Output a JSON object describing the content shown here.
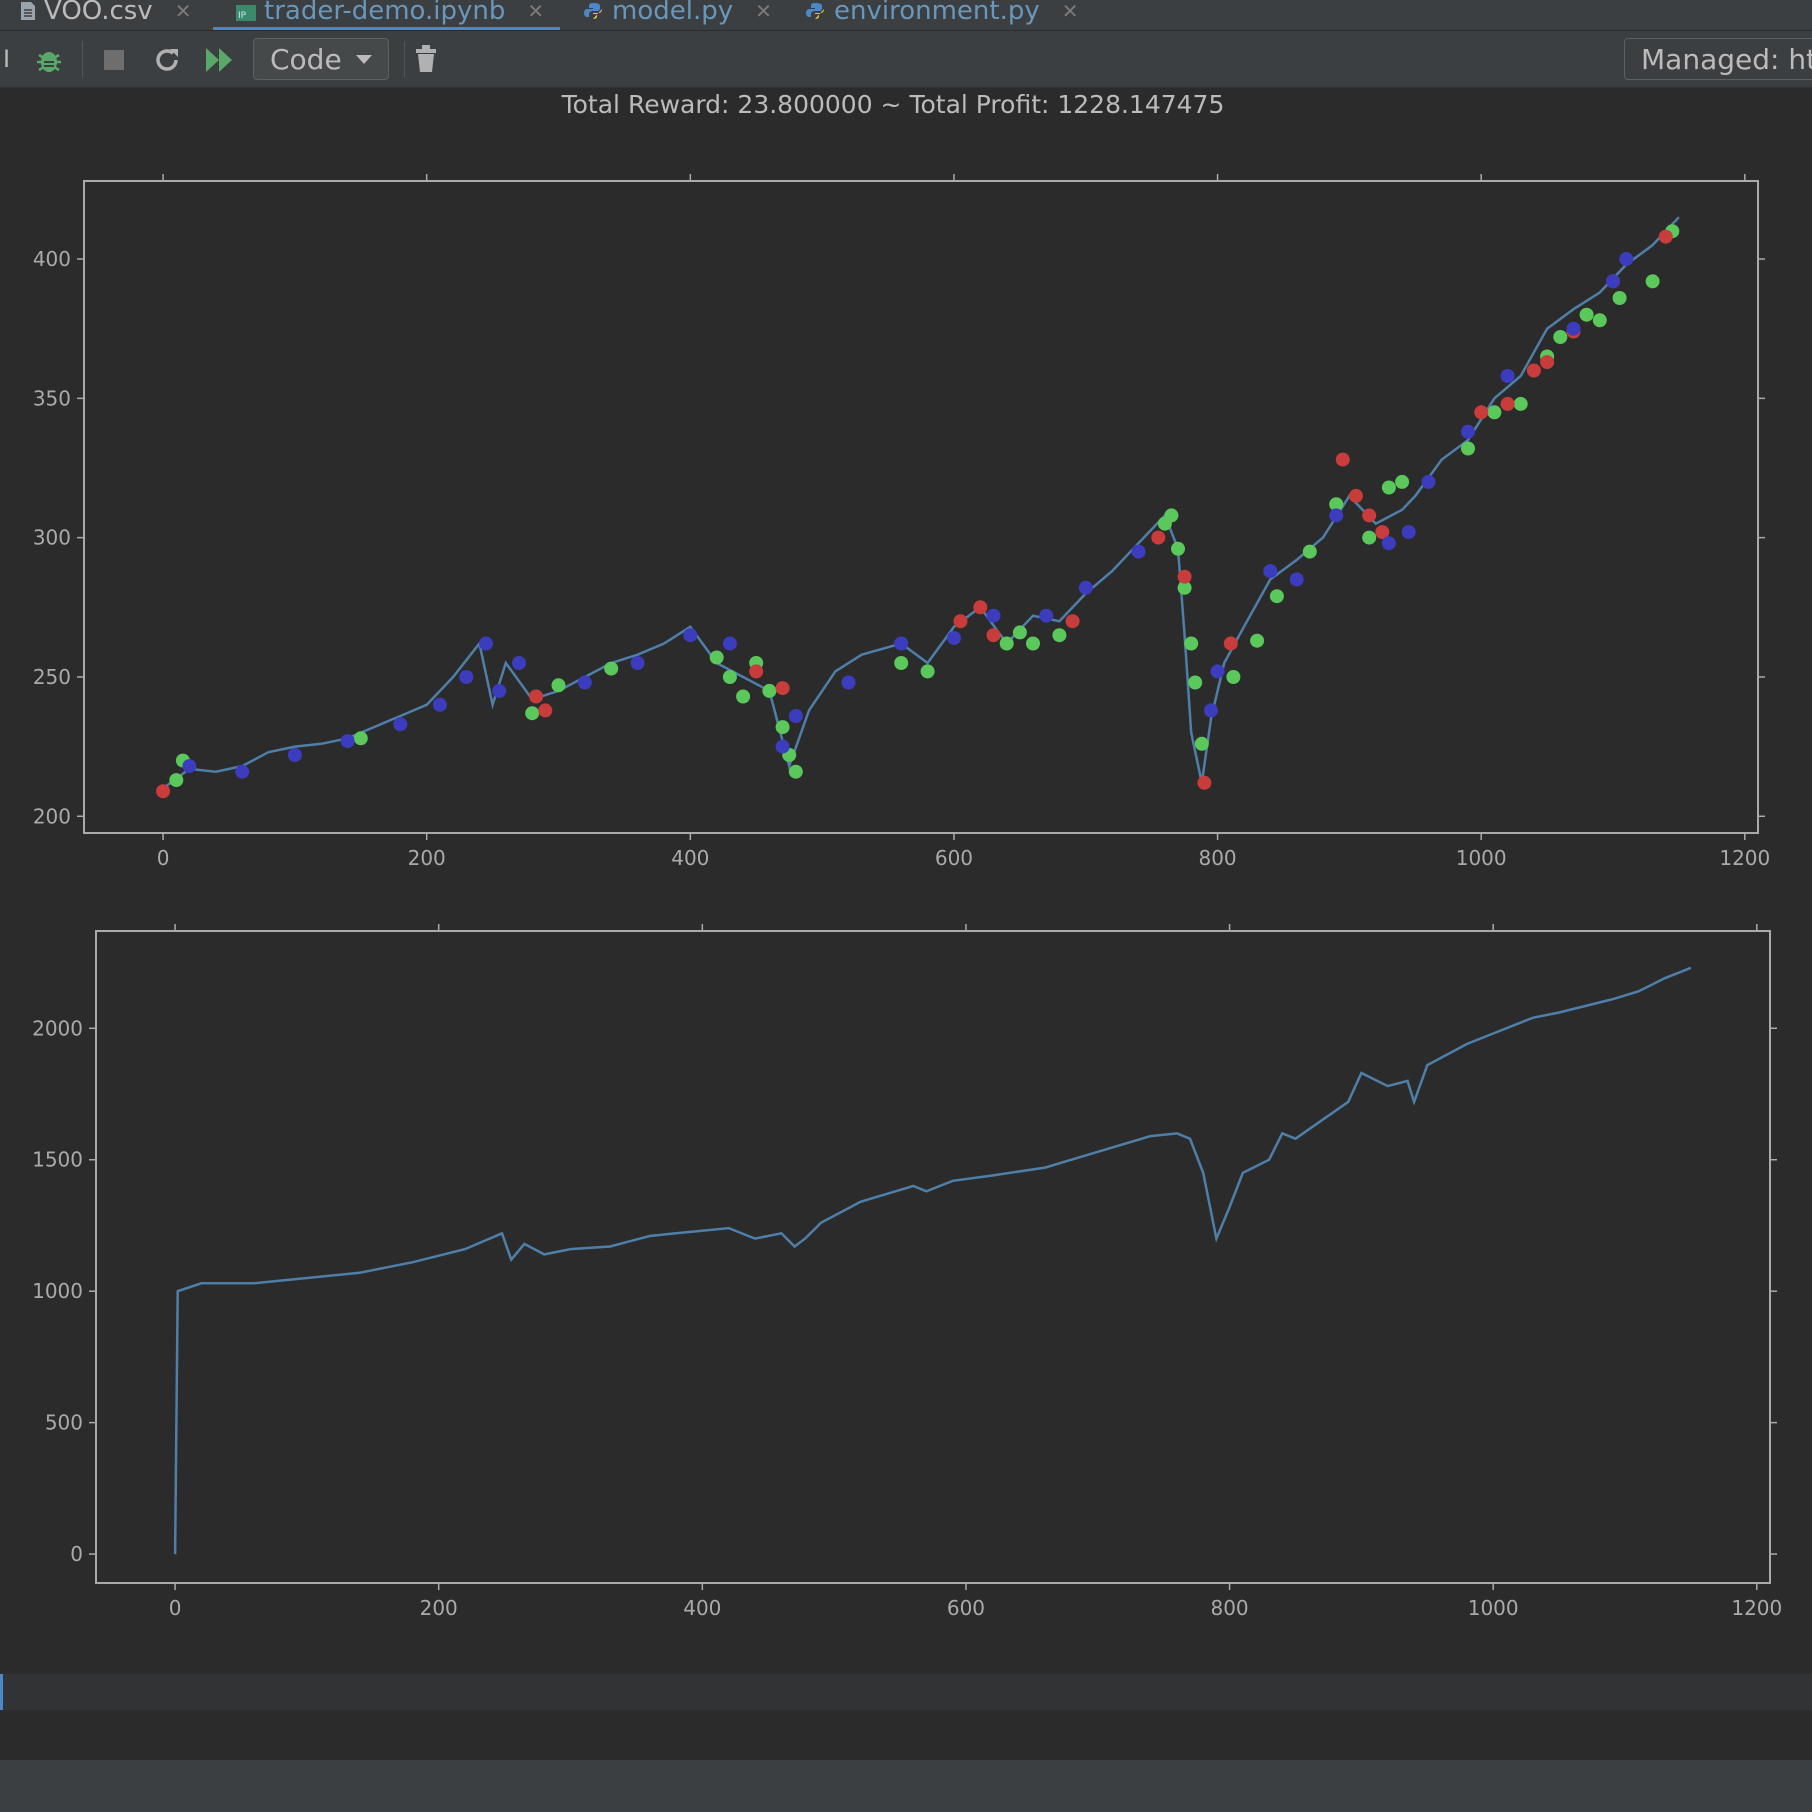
{
  "tabs": [
    {
      "label": "VOO.csv",
      "icon": "csv-file-icon"
    },
    {
      "label": "trader-demo.ipynb",
      "icon": "notebook-file-icon",
      "active": true
    },
    {
      "label": "model.py",
      "icon": "python-file-icon"
    },
    {
      "label": "environment.py",
      "icon": "python-file-icon"
    }
  ],
  "toolbar": {
    "cell_type": "Code",
    "kernel": "Managed: htt"
  },
  "output": {
    "title": "Total Reward: 23.800000 ~ Total Profit: 1228.147475"
  },
  "colors": {
    "line": "#4f7fa8",
    "buy": "#5ac85a",
    "sell": "#c83c3c",
    "hold": "#3c3cbe",
    "background": "#2b2b2b",
    "axis": "#aaaaaa"
  },
  "chart_data": [
    {
      "type": "scatter",
      "title": "",
      "xlabel": "",
      "ylabel": "",
      "xlim": [
        -60,
        1210
      ],
      "ylim": [
        194,
        428
      ],
      "xticks": [
        0,
        200,
        400,
        600,
        800,
        1000,
        1200
      ],
      "yticks": [
        200,
        250,
        300,
        350,
        400
      ],
      "grid": false,
      "series": [
        {
          "kind": "line",
          "x": [
            0,
            20,
            40,
            60,
            80,
            100,
            120,
            140,
            160,
            180,
            200,
            220,
            240,
            250,
            260,
            280,
            300,
            320,
            340,
            360,
            380,
            400,
            420,
            440,
            460,
            475,
            490,
            510,
            530,
            560,
            580,
            600,
            620,
            640,
            660,
            680,
            700,
            720,
            740,
            760,
            770,
            775,
            780,
            788,
            795,
            805,
            820,
            840,
            860,
            880,
            900,
            920,
            940,
            950,
            970,
            990,
            1010,
            1030,
            1050,
            1070,
            1090,
            1110,
            1130,
            1150
          ],
          "y": [
            210,
            217,
            216,
            218,
            223,
            225,
            226,
            228,
            232,
            236,
            240,
            250,
            262,
            240,
            255,
            242,
            245,
            250,
            255,
            258,
            262,
            268,
            255,
            250,
            245,
            218,
            238,
            252,
            258,
            262,
            255,
            268,
            275,
            262,
            272,
            270,
            280,
            288,
            298,
            308,
            296,
            265,
            230,
            212,
            235,
            255,
            268,
            285,
            292,
            300,
            315,
            305,
            310,
            315,
            328,
            335,
            350,
            358,
            375,
            382,
            388,
            398,
            405,
            415
          ]
        },
        {
          "kind": "points",
          "name": "buy",
          "x": [
            10,
            15,
            150,
            280,
            300,
            340,
            420,
            430,
            440,
            450,
            460,
            470,
            475,
            480,
            560,
            580,
            640,
            650,
            660,
            680,
            760,
            765,
            770,
            775,
            780,
            783,
            788,
            812,
            830,
            845,
            870,
            890,
            915,
            930,
            940,
            990,
            1010,
            1030,
            1050,
            1060,
            1080,
            1090,
            1105,
            1130,
            1145
          ],
          "y": [
            213,
            220,
            228,
            237,
            247,
            253,
            257,
            250,
            243,
            255,
            245,
            232,
            222,
            216,
            255,
            252,
            262,
            266,
            262,
            265,
            305,
            308,
            296,
            282,
            262,
            248,
            226,
            250,
            263,
            279,
            295,
            312,
            300,
            318,
            320,
            332,
            345,
            348,
            365,
            372,
            380,
            378,
            386,
            392,
            410
          ]
        },
        {
          "kind": "points",
          "name": "sell",
          "x": [
            0,
            283,
            290,
            450,
            470,
            605,
            620,
            630,
            690,
            755,
            775,
            790,
            810,
            895,
            905,
            915,
            925,
            1000,
            1020,
            1040,
            1050,
            1070,
            1100,
            1140
          ],
          "y": [
            209,
            243,
            238,
            252,
            246,
            270,
            275,
            265,
            270,
            300,
            286,
            212,
            262,
            328,
            315,
            308,
            302,
            345,
            348,
            360,
            363,
            374,
            392,
            408
          ]
        },
        {
          "kind": "points",
          "name": "hold",
          "x": [
            20,
            60,
            100,
            140,
            180,
            210,
            230,
            245,
            255,
            270,
            320,
            360,
            400,
            430,
            470,
            480,
            520,
            560,
            600,
            630,
            670,
            700,
            740,
            795,
            800,
            840,
            860,
            890,
            930,
            945,
            960,
            990,
            1020,
            1070,
            1100,
            1110
          ],
          "y": [
            218,
            216,
            222,
            227,
            233,
            240,
            250,
            262,
            245,
            255,
            248,
            255,
            265,
            262,
            225,
            236,
            248,
            262,
            264,
            272,
            272,
            282,
            295,
            238,
            252,
            288,
            285,
            308,
            298,
            302,
            320,
            338,
            358,
            375,
            392,
            400
          ]
        }
      ]
    },
    {
      "type": "line",
      "title": "",
      "xlabel": "",
      "ylabel": "",
      "xlim": [
        -60,
        1210
      ],
      "ylim": [
        -110,
        2370
      ],
      "xticks": [
        0,
        200,
        400,
        600,
        800,
        1000,
        1200
      ],
      "yticks": [
        0,
        500,
        1000,
        1500,
        2000
      ],
      "grid": false,
      "x": [
        0,
        2,
        20,
        60,
        100,
        140,
        180,
        220,
        248,
        255,
        265,
        280,
        300,
        330,
        360,
        380,
        420,
        440,
        460,
        470,
        478,
        490,
        520,
        560,
        570,
        590,
        620,
        660,
        700,
        740,
        760,
        770,
        780,
        786,
        790,
        800,
        810,
        830,
        840,
        850,
        870,
        890,
        900,
        920,
        935,
        940,
        950,
        980,
        1000,
        1030,
        1050,
        1090,
        1110,
        1130,
        1150
      ],
      "y": [
        0,
        1000,
        1030,
        1030,
        1050,
        1070,
        1110,
        1160,
        1220,
        1120,
        1180,
        1140,
        1160,
        1170,
        1210,
        1220,
        1240,
        1200,
        1220,
        1170,
        1200,
        1260,
        1340,
        1400,
        1380,
        1420,
        1440,
        1470,
        1530,
        1590,
        1600,
        1580,
        1450,
        1300,
        1200,
        1320,
        1450,
        1500,
        1600,
        1580,
        1650,
        1720,
        1830,
        1780,
        1800,
        1720,
        1860,
        1940,
        1980,
        2040,
        2060,
        2110,
        2140,
        2190,
        2230
      ]
    }
  ]
}
